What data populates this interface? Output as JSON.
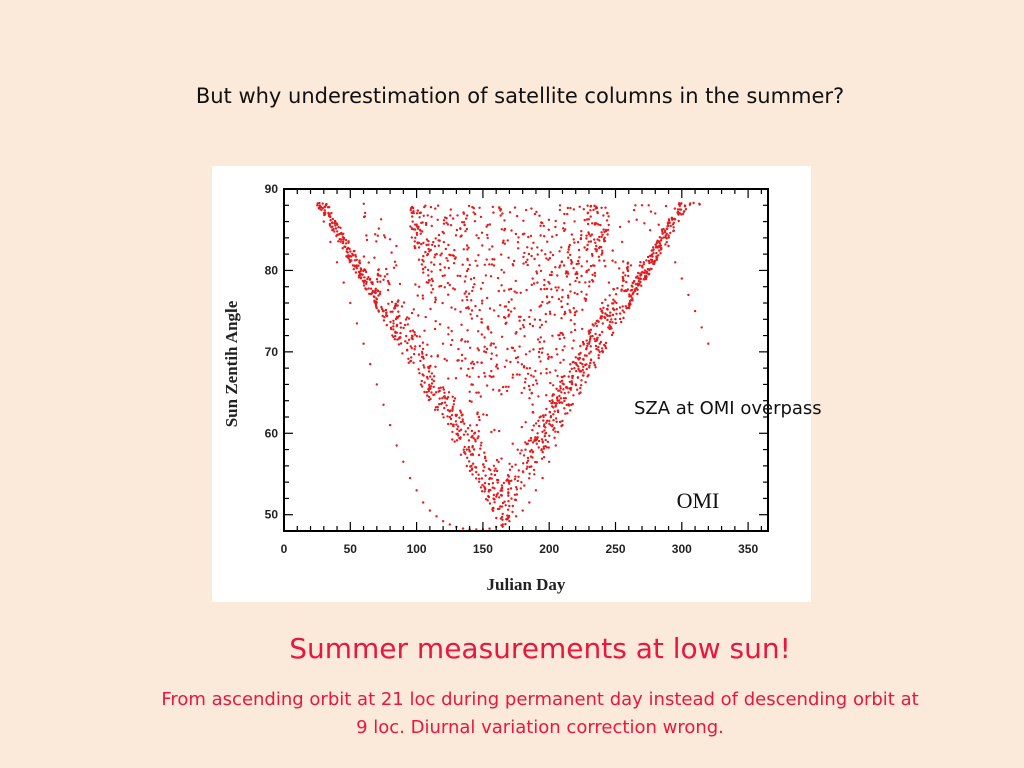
{
  "slide": {
    "title": "But why underestimation of satellite columns in the summer?",
    "callout": "SZA at OMI overpass",
    "headline": "Summer measurements at low sun!",
    "subtext_line1": "From ascending orbit at 21 loc during permanent day instead of descending orbit at",
    "subtext_line2": "9 loc. Diurnal variation correction wrong."
  },
  "colors": {
    "background": "#fbe9d9",
    "points": "#e41a1c",
    "accent_text": "#e8173f"
  },
  "chart_data": {
    "type": "scatter",
    "title": "",
    "xlabel": "Julian Day",
    "ylabel": "Sun Zentih Angle",
    "annotation": "OMI",
    "xlim": [
      0,
      365
    ],
    "ylim": [
      48,
      90
    ],
    "xticks": [
      0,
      50,
      100,
      150,
      200,
      250,
      300,
      350
    ],
    "yticks": [
      50,
      60,
      70,
      80,
      90
    ],
    "grid": false,
    "series": [
      {
        "color": "#e41a1c",
        "x": [
          25,
          30,
          35,
          40,
          45,
          50,
          55,
          60,
          65,
          70,
          75,
          80,
          85,
          90,
          95,
          100,
          105,
          110,
          115,
          120,
          125,
          130,
          135,
          140,
          145,
          150,
          155,
          160,
          165,
          170,
          175,
          180,
          185,
          190,
          195,
          200,
          205,
          210,
          215,
          220,
          225,
          230,
          235,
          240,
          245,
          250,
          255,
          260,
          265,
          270,
          275,
          280,
          285,
          290,
          295,
          300,
          305,
          310,
          315,
          320
        ],
        "y": [
          88.0,
          86.0,
          83.5,
          81.0,
          78.5,
          76.0,
          73.5,
          71.0,
          68.5,
          66.0,
          63.5,
          61.0,
          58.5,
          56.5,
          54.5,
          53.0,
          51.5,
          50.5,
          49.8,
          49.2,
          48.8,
          48.5,
          48.3,
          48.2,
          48.2,
          48.2,
          48.3,
          48.5,
          48.8,
          49.2,
          49.8,
          50.5,
          51.5,
          53.0,
          54.5,
          56.5,
          58.5,
          61.0,
          63.5,
          66.0,
          68.5,
          71.0,
          73.5,
          76.0,
          78.5,
          81.0,
          83.5,
          86.0,
          88.0,
          88.0,
          88.0,
          87.0,
          85.0,
          83.0,
          81.0,
          79.0,
          77.0,
          75.0,
          73.0,
          71.0
        ]
      }
    ]
  }
}
